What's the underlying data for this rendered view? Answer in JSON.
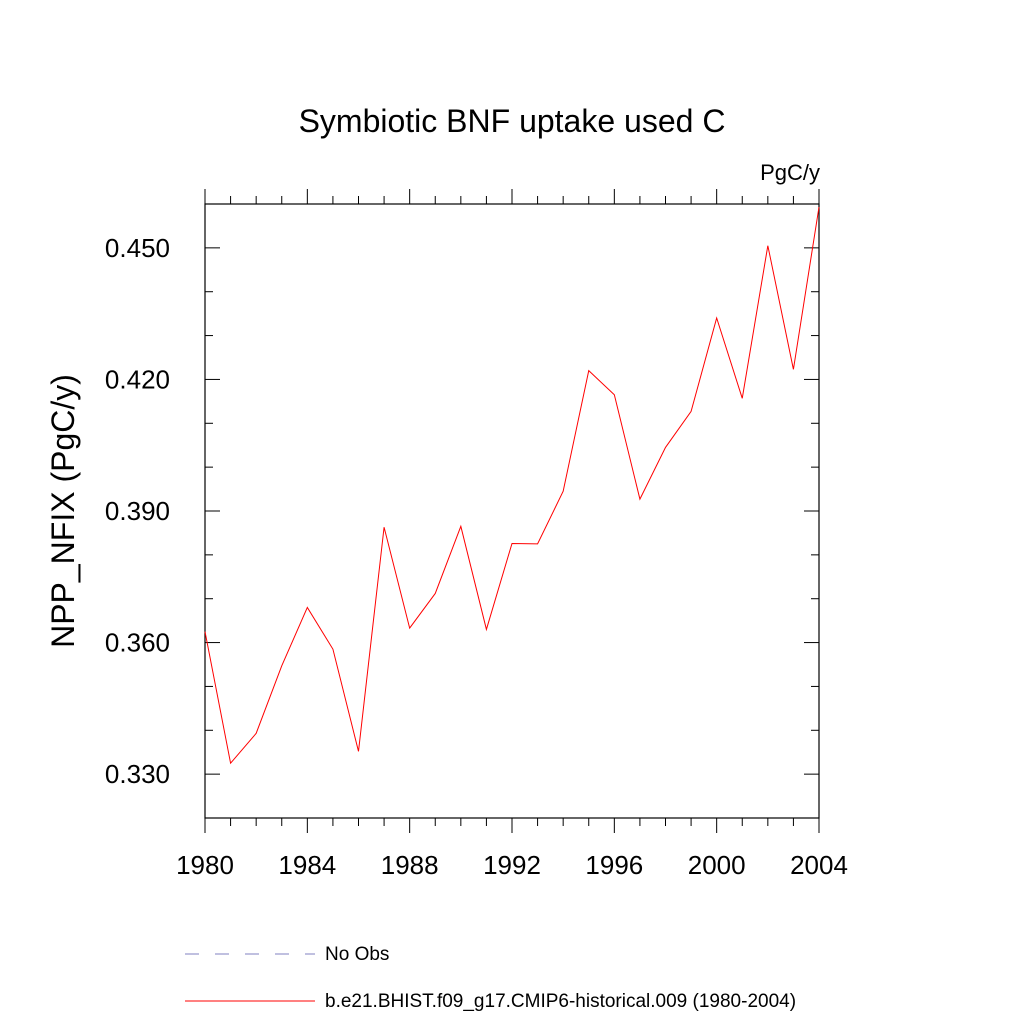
{
  "chart_data": {
    "type": "line",
    "title": "Symbiotic BNF uptake used C",
    "units_label": "PgC/y",
    "ylabel": "NPP_NFIX  (PgC/y)",
    "xlabel": "",
    "xlim": [
      1980,
      2004
    ],
    "ylim": [
      0.32,
      0.46
    ],
    "x_ticks": [
      1980,
      1984,
      1988,
      1992,
      1996,
      2000,
      2004
    ],
    "x_tick_labels": [
      "1980",
      "1984",
      "1988",
      "1992",
      "1996",
      "2000",
      "2004"
    ],
    "y_ticks": [
      0.33,
      0.36,
      0.39,
      0.42,
      0.45
    ],
    "y_tick_labels": [
      "0.330",
      "0.360",
      "0.390",
      "0.420",
      "0.450"
    ],
    "series": [
      {
        "name": "b.e21.BHIST.f09_g17.CMIP6-historical.009 (1980-2004)",
        "color": "#ff0000",
        "style": "solid",
        "x": [
          1980,
          1981,
          1982,
          1983,
          1984,
          1985,
          1986,
          1987,
          1988,
          1989,
          1990,
          1991,
          1992,
          1993,
          1994,
          1995,
          1996,
          1997,
          1998,
          1999,
          2000,
          2001,
          2002,
          2003,
          2004
        ],
        "values": [
          0.3625,
          0.3325,
          0.3393,
          0.3547,
          0.368,
          0.3585,
          0.3352,
          0.3863,
          0.3633,
          0.3712,
          0.3865,
          0.363,
          0.3826,
          0.3825,
          0.3945,
          0.422,
          0.4165,
          0.3927,
          0.4045,
          0.4127,
          0.434,
          0.4157,
          0.4505,
          0.4223,
          0.4593
        ]
      }
    ],
    "legend": [
      {
        "label": "No Obs",
        "color": "#8080c0",
        "style": "dashed"
      },
      {
        "label": "b.e21.BHIST.f09_g17.CMIP6-historical.009 (1980-2004)",
        "color": "#ff0000",
        "style": "solid"
      }
    ]
  }
}
